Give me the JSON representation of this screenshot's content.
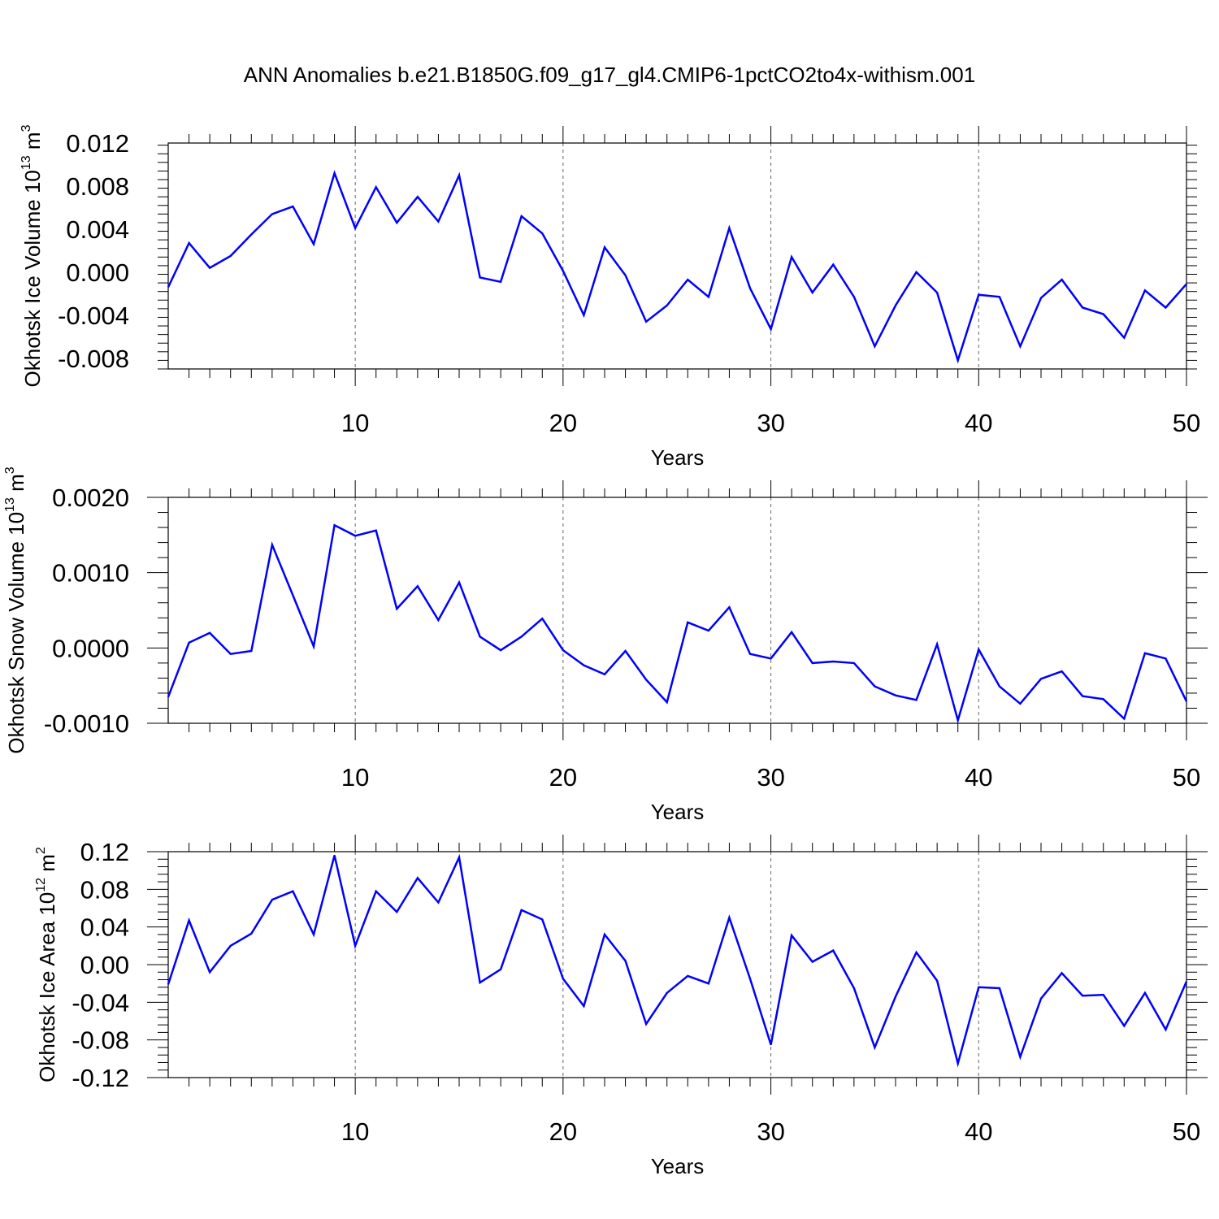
{
  "title": "ANN Anomalies b.e21.B1850G.f09_g17_gl4.CMIP6-1pctCO2to4x-withism.001",
  "colors": {
    "line": "#0000ff",
    "axis": "#000000",
    "grid": "#666666"
  },
  "chart_data": [
    {
      "type": "line",
      "ylabel_main": "Okhotsk Ice Volume 10",
      "ylabel_exp": "13",
      "ylabel_unit": "m",
      "ylabel_unit_exp": "3",
      "xlabel": "Years",
      "xlim": [
        1,
        50
      ],
      "ylim": [
        -0.009,
        0.012
      ],
      "xticks": [
        10,
        20,
        30,
        40,
        50
      ],
      "yticks": [
        -0.008,
        -0.004,
        0.0,
        0.004,
        0.008,
        0.012
      ],
      "ytick_labels": [
        "-0.008",
        "-0.004",
        "0.000",
        "0.004",
        "0.008",
        "0.012"
      ],
      "grid": "vertical dashed at major x ticks",
      "series": [
        {
          "values": [
            -0.0014,
            0.0027,
            0.0004,
            0.0015,
            0.0035,
            0.0054,
            0.0061,
            0.0026,
            0.0092,
            0.0041,
            0.0079,
            0.0046,
            0.007,
            0.0047,
            0.009,
            -0.0005,
            -0.0009,
            0.0052,
            0.0036,
            0.0001,
            -0.004,
            0.0023,
            -0.0003,
            -0.0046,
            -0.0031,
            -0.0007,
            -0.0023,
            0.0041,
            -0.0015,
            -0.0053,
            0.0014,
            -0.0019,
            0.0007,
            -0.0023,
            -0.0069,
            -0.0031,
            0.0,
            -0.0019,
            -0.0082,
            -0.0021,
            -0.0023,
            -0.0069,
            -0.0024,
            -0.0007,
            -0.0033,
            -0.0039,
            -0.0061,
            -0.0017,
            -0.0033,
            -0.0011
          ]
        }
      ]
    },
    {
      "type": "line",
      "ylabel_main": "Okhotsk Snow Volume 10",
      "ylabel_exp": "13",
      "ylabel_unit": "m",
      "ylabel_unit_exp": "3",
      "xlabel": "Years",
      "xlim": [
        1,
        50
      ],
      "ylim": [
        -0.001,
        0.002
      ],
      "xticks": [
        10,
        20,
        30,
        40,
        50
      ],
      "yticks": [
        -0.001,
        0.0,
        0.001,
        0.002
      ],
      "ytick_labels": [
        "-0.0010",
        "0.0000",
        "0.0010",
        "0.0020"
      ],
      "grid": "vertical dashed at major x ticks",
      "series": [
        {
          "values": [
            -0.00065,
            7e-05,
            0.0002,
            -8e-05,
            -4e-05,
            0.00137,
            0.0007,
            2e-05,
            0.00163,
            0.00149,
            0.00156,
            0.00052,
            0.00082,
            0.00037,
            0.00087,
            0.00015,
            -3e-05,
            0.00015,
            0.00039,
            -3e-05,
            -0.00023,
            -0.00035,
            -4e-05,
            -0.00042,
            -0.00072,
            0.00034,
            0.00023,
            0.00054,
            -8e-05,
            -0.00014,
            0.00021,
            -0.0002,
            -0.00018,
            -0.0002,
            -0.00051,
            -0.00063,
            -0.00069,
            5e-05,
            -0.00096,
            -2e-05,
            -0.00051,
            -0.00074,
            -0.00041,
            -0.00031,
            -0.00064,
            -0.00068,
            -0.00094,
            -7e-05,
            -0.00014,
            -0.00071
          ]
        }
      ]
    },
    {
      "type": "line",
      "ylabel_main": "Okhotsk Ice Area 10",
      "ylabel_exp": "12",
      "ylabel_unit": "m",
      "ylabel_unit_exp": "2",
      "xlabel": "Years",
      "xlim": [
        1,
        50
      ],
      "ylim": [
        -0.12,
        0.12
      ],
      "xticks": [
        10,
        20,
        30,
        40,
        50
      ],
      "yticks": [
        -0.12,
        -0.08,
        -0.04,
        0.0,
        0.04,
        0.08,
        0.12
      ],
      "ytick_labels": [
        "-0.12",
        "-0.08",
        "-0.04",
        "0.00",
        "0.04",
        "0.08",
        "0.12"
      ],
      "grid": "vertical dashed at major x ticks",
      "series": [
        {
          "values": [
            -0.021,
            0.047,
            -0.008,
            0.02,
            0.033,
            0.069,
            0.078,
            0.032,
            0.116,
            0.02,
            0.078,
            0.056,
            0.092,
            0.066,
            0.114,
            -0.019,
            -0.005,
            0.058,
            0.048,
            -0.015,
            -0.044,
            0.032,
            0.004,
            -0.063,
            -0.03,
            -0.012,
            -0.02,
            0.05,
            -0.015,
            -0.085,
            0.031,
            0.003,
            0.015,
            -0.025,
            -0.088,
            -0.034,
            0.013,
            -0.017,
            -0.105,
            -0.024,
            -0.025,
            -0.098,
            -0.036,
            -0.009,
            -0.033,
            -0.032,
            -0.065,
            -0.03,
            -0.069,
            -0.018
          ]
        }
      ]
    }
  ]
}
